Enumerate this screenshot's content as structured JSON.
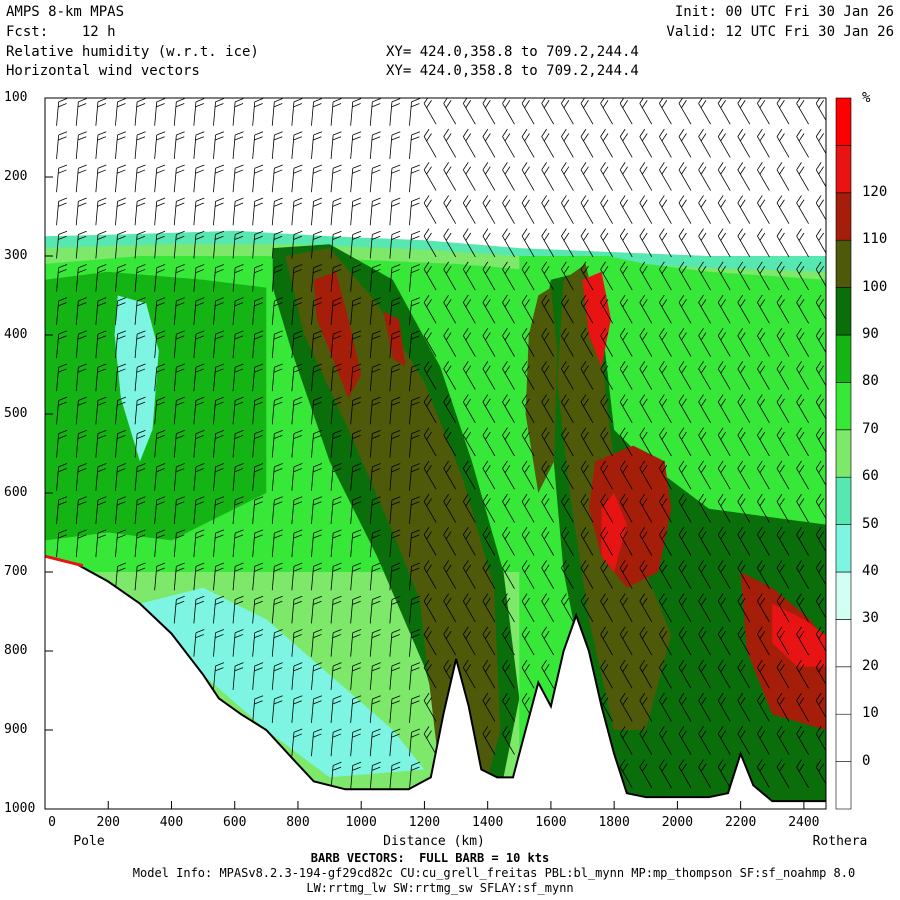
{
  "header": {
    "left_line1": "AMPS 8-km MPAS",
    "left_line2": "Fcst:    12 h",
    "left_line3": "Relative humidity (w.r.t. ice)",
    "left_line4": "Horizontal wind vectors",
    "right_line1": "Init: 00 UTC Fri 30 Jan 26",
    "right_line2": "Valid: 12 UTC Fri 30 Jan 26",
    "xy_line1": "XY= 424.0,358.8 to 709.2,244.4",
    "xy_line2": "XY= 424.0,358.8 to 709.2,244.4"
  },
  "footer": {
    "barb_note": "BARB VECTORS:  FULL BARB = 10 kts",
    "model_info": "Model Info: MPASv8.2.3-194-gf29cd82c CU:cu_grell_freitas PBL:bl_mynn MP:mp_thompson SF:sf_noahmp 8.0",
    "model_info2": "LW:rrtmg_lw SW:rrtmg_sw SFLAY:sf_mynn"
  },
  "chart_data": {
    "type": "heatmap",
    "xlabel": "Distance (km)",
    "x_left_label": "Pole",
    "x_right_label": "Rothera",
    "x_ticks": [
      0,
      200,
      400,
      600,
      800,
      1000,
      1200,
      1400,
      1600,
      1800,
      2000,
      2200,
      2400
    ],
    "xlim": [
      0,
      2470
    ],
    "y_ticks": [
      100,
      200,
      300,
      400,
      500,
      600,
      700,
      800,
      900,
      1000
    ],
    "ylim": [
      1000,
      100
    ],
    "colorbar": {
      "unit": "%",
      "tick_labels": [
        120,
        110,
        100,
        90,
        80,
        70,
        60,
        50,
        40,
        30,
        20,
        10,
        0
      ],
      "levels": [
        -10,
        0,
        10,
        20,
        30,
        40,
        50,
        60,
        70,
        80,
        90,
        100,
        110,
        120,
        130
      ],
      "colors": [
        "#ffffff",
        "#ffffff",
        "#ffffff",
        "#ffffff",
        "#d2fff4",
        "#7ef5e2",
        "#56e8b0",
        "#7de86a",
        "#38e838",
        "#14b414",
        "#0a6e0a",
        "#4e5a0a",
        "#a51e0a",
        "#e81414",
        "#ff0000"
      ]
    },
    "terrain_top_hpa": [
      {
        "x": 0,
        "p": 680
      },
      {
        "x": 100,
        "p": 690
      },
      {
        "x": 200,
        "p": 712
      },
      {
        "x": 300,
        "p": 740
      },
      {
        "x": 400,
        "p": 778
      },
      {
        "x": 500,
        "p": 830
      },
      {
        "x": 550,
        "p": 860
      },
      {
        "x": 620,
        "p": 880
      },
      {
        "x": 700,
        "p": 900
      },
      {
        "x": 780,
        "p": 935
      },
      {
        "x": 850,
        "p": 965
      },
      {
        "x": 950,
        "p": 975
      },
      {
        "x": 1050,
        "p": 975
      },
      {
        "x": 1150,
        "p": 975
      },
      {
        "x": 1220,
        "p": 960
      },
      {
        "x": 1260,
        "p": 880
      },
      {
        "x": 1300,
        "p": 810
      },
      {
        "x": 1340,
        "p": 870
      },
      {
        "x": 1380,
        "p": 950
      },
      {
        "x": 1430,
        "p": 960
      },
      {
        "x": 1480,
        "p": 960
      },
      {
        "x": 1520,
        "p": 900
      },
      {
        "x": 1560,
        "p": 840
      },
      {
        "x": 1600,
        "p": 870
      },
      {
        "x": 1640,
        "p": 800
      },
      {
        "x": 1680,
        "p": 755
      },
      {
        "x": 1720,
        "p": 800
      },
      {
        "x": 1760,
        "p": 870
      },
      {
        "x": 1800,
        "p": 930
      },
      {
        "x": 1840,
        "p": 980
      },
      {
        "x": 1900,
        "p": 985
      },
      {
        "x": 2000,
        "p": 985
      },
      {
        "x": 2100,
        "p": 985
      },
      {
        "x": 2160,
        "p": 980
      },
      {
        "x": 2200,
        "p": 930
      },
      {
        "x": 2240,
        "p": 970
      },
      {
        "x": 2300,
        "p": 990
      },
      {
        "x": 2400,
        "p": 990
      },
      {
        "x": 2470,
        "p": 990
      }
    ]
  }
}
